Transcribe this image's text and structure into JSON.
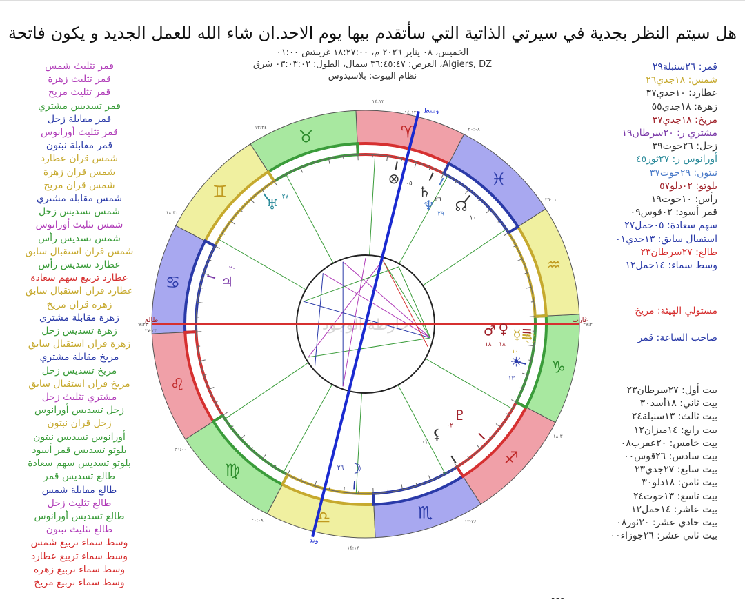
{
  "title": "هل سيتم النظر بجدية في سيرتي الذاتية التي سأتقدم بيها يوم الاحد.ان شاء الله للعمل الجديد و يكون فاتحة",
  "meta": {
    "line1": "الخميس، ٠٨ يناير ٢٠٢٦ م، ١٨:٢٧:٠٠ غرينتش ٠١:٠٠",
    "line2": "Algiers, DZ، العرض: ٣٦:٤٥:٤٧ شمال، الطول: ٠٣:٠٣:٠٢ شرق",
    "line3": "نظام البيوت: بلاسيدوس"
  },
  "aspects": [
    {
      "text": "قمر تثليث شمس",
      "color": "#b03cb8"
    },
    {
      "text": "قمر تثليث زهرة",
      "color": "#b03cb8"
    },
    {
      "text": "قمر تثليث مريخ",
      "color": "#b03cb8"
    },
    {
      "text": "قمر تسديس مشتري",
      "color": "#3a9c3a"
    },
    {
      "text": "قمر مقابلة زحل",
      "color": "#2a3aa8"
    },
    {
      "text": "قمر تثليث أورانوس",
      "color": "#b03cb8"
    },
    {
      "text": "قمر مقابلة نبتون",
      "color": "#2a3aa8"
    },
    {
      "text": "شمس قران عطارد",
      "color": "#c6a92e"
    },
    {
      "text": "شمس قران زهرة",
      "color": "#c6a92e"
    },
    {
      "text": "شمس قران مريخ",
      "color": "#c6a92e"
    },
    {
      "text": "شمس مقابلة مشتري",
      "color": "#2a3aa8"
    },
    {
      "text": "شمس تسديس زحل",
      "color": "#3a9c3a"
    },
    {
      "text": "شمس تثليث أورانوس",
      "color": "#b03cb8"
    },
    {
      "text": "شمس تسديس رأس",
      "color": "#3a9c3a"
    },
    {
      "text": "شمس قران استقبال سابق",
      "color": "#c6a92e"
    },
    {
      "text": "عطارد تسديس رأس",
      "color": "#3a9c3a"
    },
    {
      "text": "عطارد تربيع سهم سعادة",
      "color": "#d63030"
    },
    {
      "text": "عطارد قران استقبال سابق",
      "color": "#c6a92e"
    },
    {
      "text": "زهرة قران مريخ",
      "color": "#c6a92e"
    },
    {
      "text": "زهرة مقابلة مشتري",
      "color": "#2a3aa8"
    },
    {
      "text": "زهرة تسديس زحل",
      "color": "#3a9c3a"
    },
    {
      "text": "زهرة قران استقبال سابق",
      "color": "#c6a92e"
    },
    {
      "text": "مريخ مقابلة مشتري",
      "color": "#2a3aa8"
    },
    {
      "text": "مريخ تسديس زحل",
      "color": "#3a9c3a"
    },
    {
      "text": "مريخ قران استقبال سابق",
      "color": "#c6a92e"
    },
    {
      "text": "مشتري تثليث زحل",
      "color": "#b03cb8"
    },
    {
      "text": "زحل تسديس أورانوس",
      "color": "#3a9c3a"
    },
    {
      "text": "زحل قران نبتون",
      "color": "#c6a92e"
    },
    {
      "text": "أورانوس تسديس نبتون",
      "color": "#3a9c3a"
    },
    {
      "text": "بلوتو تسديس قمر أسود",
      "color": "#3a9c3a"
    },
    {
      "text": "بلوتو تسديس سهم سعادة",
      "color": "#3a9c3a"
    },
    {
      "text": "طالع تسديس قمر",
      "color": "#3a9c3a"
    },
    {
      "text": "طالع مقابلة شمس",
      "color": "#2a3aa8"
    },
    {
      "text": "طالع تثليث زحل",
      "color": "#b03cb8"
    },
    {
      "text": "طالع تسديس أورانوس",
      "color": "#3a9c3a"
    },
    {
      "text": "طالع تثليث نبتون",
      "color": "#b03cb8"
    },
    {
      "text": "وسط سماء تربيع شمس",
      "color": "#d63030"
    },
    {
      "text": "وسط سماء تربيع عطارد",
      "color": "#d63030"
    },
    {
      "text": "وسط سماء تربيع زهرة",
      "color": "#d63030"
    },
    {
      "text": "وسط سماء تربيع مريخ",
      "color": "#d63030"
    }
  ],
  "planets": [
    {
      "text": "قمر: ٢٦سنبلة٢٩",
      "color": "#2a3aa8"
    },
    {
      "text": "شمس: ١٨جدي٢٦",
      "color": "#c6a92e"
    },
    {
      "text": "عطارد: ١٠جدي٣٧",
      "color": "#333333"
    },
    {
      "text": "زهرة: ١٨جدي٥٥",
      "color": "#333333"
    },
    {
      "text": "مريخ: ١٨جدي٣٧",
      "color": "#a0222a"
    },
    {
      "text": "مشتري ر: ٢٠سرطان١٩",
      "color": "#7b3aa8"
    },
    {
      "text": "زحل: ٢٦حوت٣٩",
      "color": "#333333"
    },
    {
      "text": "أورانوس ر: ٢٧ثور٤٥",
      "color": "#2a8a9a"
    },
    {
      "text": "نبتون: ٢٩حوت٣٧",
      "color": "#4a7ac8"
    },
    {
      "text": "بلوتو: ٠٢دلو٥٧",
      "color": "#a0222a"
    },
    {
      "text": "رأس: ١٠حوت١٩",
      "color": "#333333"
    },
    {
      "text": "قمر أسود: ٠٢قوس٠٩",
      "color": "#333333"
    },
    {
      "text": "سهم سعادة: ٠٥حمل٢٧",
      "color": "#2a3aa8"
    },
    {
      "text": "استقبال سابق: ١٣جدي٠١",
      "color": "#2a3aa8"
    },
    {
      "text": "طالع: ٢٧سرطان٢٣",
      "color": "#d63030"
    },
    {
      "text": "وسط سماء: ١٤حمل١٢",
      "color": "#2a3aa8"
    }
  ],
  "rulers": [
    {
      "text": "مستولي الهيئة: مريخ",
      "color": "#d63030"
    },
    {
      "text": "صاحب الساعة: قمر",
      "color": "#2a3aa8"
    }
  ],
  "houses": [
    "بيت أول: ٢٧سرطان٢٣",
    "بيت ثاني: ١٨أسد٣٠",
    "بيت ثالث: ١٣سنبلة٢٤",
    "بيت رابع: ١٤ميزان١٢",
    "بيت خامس: ٢٠عقرب٠٨",
    "بيت سادس: ٢٦قوس٠٠",
    "بيت سابع: ٢٧جدي٢٣",
    "بيت ثامن: ١٨دلو٣٠",
    "بيت تاسع: ١٣حوت٢٤",
    "بيت عاشر: ١٤حمل١٢",
    "بيت حادي عشر: ٢٠ثور٠٨",
    "بيت ثاني عشر: ٢٦جوزاء٠٠"
  ],
  "wheel": {
    "asc_label": "طالع",
    "dsc_label": "غارب",
    "mc_label": "وسط",
    "ic_label": "وتد",
    "asc_deg": "٢٧:٢٣",
    "mc_deg": "١٤:١٢",
    "watermark": "خارطة الوجود",
    "signs": [
      "♈",
      "♉",
      "♊",
      "♋",
      "♌",
      "♍",
      "♎",
      "♏",
      "♐",
      "♑",
      "♒",
      "♓"
    ],
    "sign_colors": [
      "#f0a0a8",
      "#a8e8a0",
      "#f0f0a0",
      "#a8a8f0",
      "#f0a0a8",
      "#a8e8a0",
      "#f0f0a0",
      "#a8a8f0",
      "#f0a0a8",
      "#a8e8a0",
      "#f0f0a0",
      "#a8a8f0"
    ],
    "sign_glyph_colors": [
      "#c02a2a",
      "#2a8a2a",
      "#c09a20",
      "#2a3aa8",
      "#c02a2a",
      "#2a8a2a",
      "#c09a20",
      "#2a3aa8",
      "#c02a2a",
      "#2a8a2a",
      "#c09a20",
      "#2a3aa8"
    ],
    "cusp_labels": [
      "٢٧:٢٣",
      "١٨:٣٠",
      "١٣:٢٤",
      "١٤:١٢",
      "٢٠:٠٨",
      "٢٦:٠٠",
      "٢٧:٢٣",
      "١٨:٣٠",
      "١٣:٢٤",
      "١٤:١٢",
      "٢٠:٠٨",
      "٢٦:٠٠"
    ],
    "planet_glyphs": [
      {
        "g": "☿",
        "deg": "١٠",
        "color": "#c6a92e"
      },
      {
        "g": "♀",
        "deg": "١٨",
        "color": "#a0222a"
      },
      {
        "g": "♂",
        "deg": "١٨",
        "color": "#a0222a"
      },
      {
        "g": "☉",
        "deg": "",
        "color": "#c6a92e"
      },
      {
        "g": "☀",
        "deg": "١٣",
        "color": "#2a3aa8"
      },
      {
        "g": "♇",
        "deg": "٠٢",
        "color": "#a0222a"
      },
      {
        "g": "♆",
        "deg": "٢٩",
        "color": "#4a7ac8"
      },
      {
        "g": "♄",
        "deg": "٢٦",
        "color": "#333333"
      },
      {
        "g": "☊",
        "deg": "١٠",
        "color": "#333333"
      },
      {
        "g": "⊗",
        "deg": "٠٥",
        "color": "#333333"
      },
      {
        "g": "♅",
        "deg": "٢٧",
        "color": "#2a8a9a"
      },
      {
        "g": "♃",
        "deg": "٢٠",
        "color": "#7b3aa8"
      },
      {
        "g": "☽",
        "deg": "٢٦",
        "color": "#2a3aa8"
      },
      {
        "g": "⚸",
        "deg": "٠٢",
        "color": "#333333"
      }
    ]
  }
}
